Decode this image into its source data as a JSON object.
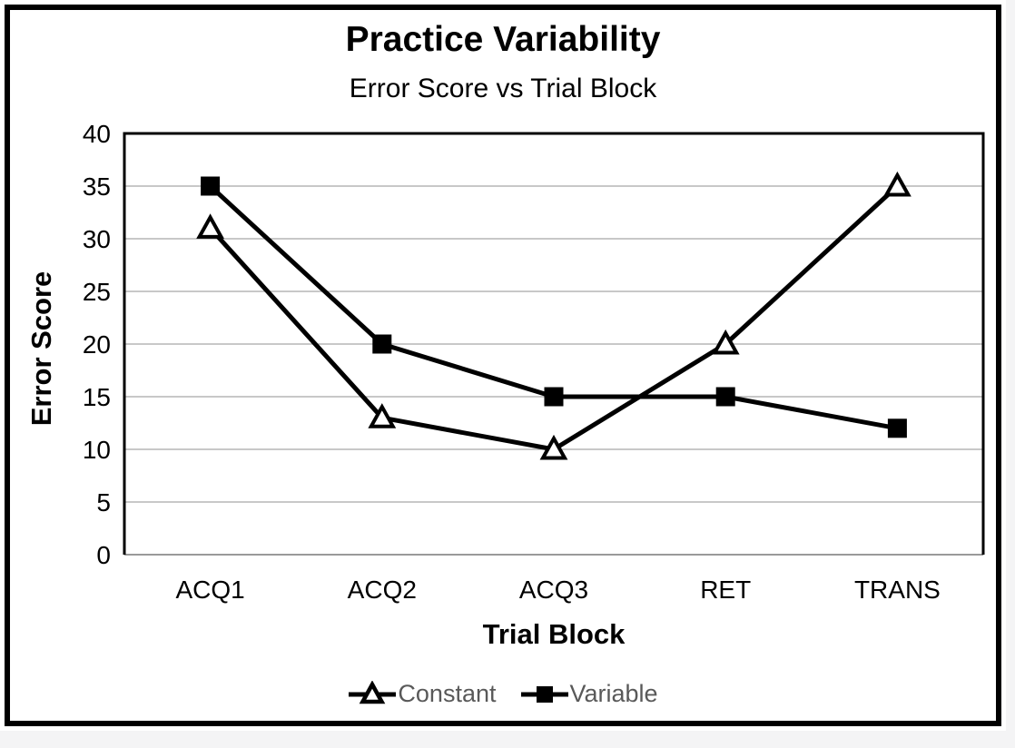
{
  "page": {
    "background": "#f4f4f5",
    "slide_background": "#ffffff",
    "frame_color": "#000000"
  },
  "chart_data": {
    "type": "line",
    "title": "Practice Variability",
    "subtitle": "Error Score vs Trial Block",
    "xlabel": "Trial Block",
    "ylabel": "Error Score",
    "categories": [
      "ACQ1",
      "ACQ2",
      "ACQ3",
      "RET",
      "TRANS"
    ],
    "series": [
      {
        "name": "Constant",
        "marker": "triangle-open",
        "values": [
          31,
          13,
          10,
          20,
          35
        ]
      },
      {
        "name": "Variable",
        "marker": "square-filled",
        "values": [
          35,
          20,
          15,
          15,
          12
        ]
      }
    ],
    "ylim": [
      0,
      40
    ],
    "yticks": [
      0,
      5,
      10,
      15,
      20,
      25,
      30,
      35,
      40
    ],
    "grid": true,
    "legend_position": "bottom",
    "colors": {
      "line": "#000000",
      "grid": "#a6a6a6",
      "baseline": "#8c8c8c",
      "plot_border": "#000000",
      "legend_text": "#595959",
      "axis_text": "#000000"
    }
  }
}
